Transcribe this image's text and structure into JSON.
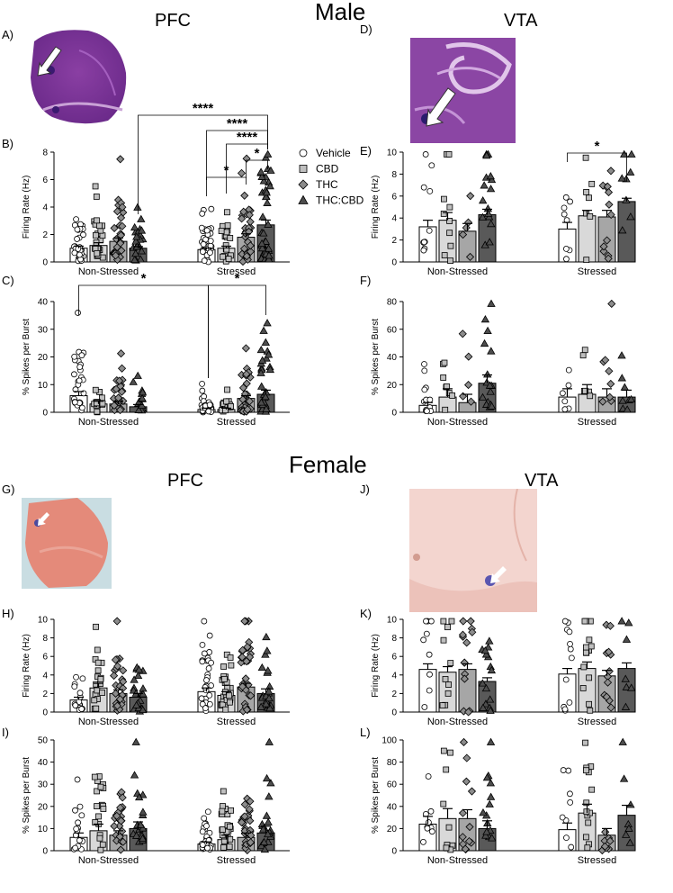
{
  "titles": {
    "male": "Male",
    "female": "Female"
  },
  "regions": {
    "male_pfc": "PFC",
    "male_vta": "VTA",
    "female_pfc": "PFC",
    "female_vta": "VTA"
  },
  "panel_labels": [
    "A)",
    "B)",
    "C)",
    "D)",
    "E)",
    "F)",
    "G)",
    "H)",
    "I)",
    "J)",
    "K)",
    "L)"
  ],
  "legend": {
    "entries": [
      {
        "label": "Vehicle",
        "marker": "circle"
      },
      {
        "label": "CBD",
        "marker": "square"
      },
      {
        "label": "THC",
        "marker": "diamond"
      },
      {
        "label": "THC:CBD",
        "marker": "triangle"
      }
    ]
  },
  "colors": {
    "vehicle": "#ffffff",
    "cbd": "#d9d9d9",
    "thc": "#a6a6a6",
    "thccbd": "#595959",
    "marker_cbd": "#bfbfbf",
    "marker_thc": "#8c8c8c",
    "marker_thccbd": "#4d4d4d"
  },
  "chart_data": [
    {
      "id": "B",
      "type": "bar",
      "ylabel": "Firing Rate (Hz)",
      "ylim": [
        0,
        8
      ],
      "yticks": [
        0,
        2,
        4,
        6,
        8
      ],
      "categories": [
        "Non-Stressed",
        "Stressed"
      ],
      "series": [
        {
          "name": "Vehicle",
          "values": [
            1.0,
            0.9
          ],
          "sem": [
            0.15,
            0.12
          ],
          "n": [
            30,
            30
          ]
        },
        {
          "name": "CBD",
          "values": [
            1.2,
            1.0
          ],
          "sem": [
            0.2,
            0.15
          ],
          "n": [
            22,
            20
          ]
        },
        {
          "name": "THC",
          "values": [
            1.5,
            1.8
          ],
          "sem": [
            0.25,
            0.25
          ],
          "n": [
            30,
            30
          ]
        },
        {
          "name": "THC:CBD",
          "values": [
            1.0,
            2.7
          ],
          "sem": [
            0.12,
            0.35
          ],
          "n": [
            22,
            40
          ]
        }
      ],
      "annotations": [
        "****",
        "****",
        "****",
        "*",
        "*"
      ]
    },
    {
      "id": "C",
      "type": "bar",
      "ylabel": "% Spikes per Burst",
      "ylim": [
        0,
        40
      ],
      "yticks": [
        0,
        10,
        20,
        30,
        40
      ],
      "categories": [
        "Non-Stressed",
        "Stressed"
      ],
      "series": [
        {
          "name": "Vehicle",
          "values": [
            6.0,
            1.0
          ],
          "sem": [
            1.5,
            0.5
          ],
          "n": [
            30,
            30
          ]
        },
        {
          "name": "CBD",
          "values": [
            3.0,
            1.0
          ],
          "sem": [
            1.0,
            0.5
          ],
          "n": [
            15,
            15
          ]
        },
        {
          "name": "THC",
          "values": [
            3.0,
            5.0
          ],
          "sem": [
            1.0,
            1.0
          ],
          "n": [
            25,
            30
          ]
        },
        {
          "name": "THC:CBD",
          "values": [
            2.0,
            6.5
          ],
          "sem": [
            0.8,
            1.5
          ],
          "n": [
            15,
            30
          ]
        }
      ],
      "annotations": [
        "*",
        "*"
      ]
    },
    {
      "id": "E",
      "type": "bar",
      "ylabel": "Firing Rate (Hz)",
      "ylim": [
        0,
        10
      ],
      "yticks": [
        0,
        2,
        4,
        6,
        8,
        10
      ],
      "categories": [
        "Non-Stressed",
        "Stressed"
      ],
      "series": [
        {
          "name": "Vehicle",
          "values": [
            3.2,
            3.0
          ],
          "sem": [
            0.6,
            0.6
          ],
          "n": [
            10,
            8
          ]
        },
        {
          "name": "CBD",
          "values": [
            3.8,
            4.2
          ],
          "sem": [
            0.7,
            0.5
          ],
          "n": [
            10,
            7
          ]
        },
        {
          "name": "THC",
          "values": [
            2.8,
            4.1
          ],
          "sem": [
            0.7,
            0.6
          ],
          "n": [
            5,
            12
          ]
        },
        {
          "name": "THC:CBD",
          "values": [
            4.3,
            5.5
          ],
          "sem": [
            0.5,
            0.3
          ],
          "n": [
            16,
            8
          ]
        }
      ],
      "annotations": [
        "*"
      ]
    },
    {
      "id": "F",
      "type": "bar",
      "ylabel": "% Spikes per Burst",
      "ylim": [
        0,
        80
      ],
      "yticks": [
        0,
        20,
        40,
        60,
        80
      ],
      "categories": [
        "Non-Stressed",
        "Stressed"
      ],
      "series": [
        {
          "name": "Vehicle",
          "values": [
            5,
            11
          ],
          "sem": [
            2,
            6
          ],
          "n": [
            12,
            6
          ]
        },
        {
          "name": "CBD",
          "values": [
            11,
            13
          ],
          "sem": [
            6,
            7
          ],
          "n": [
            8,
            6
          ]
        },
        {
          "name": "THC",
          "values": [
            7,
            11
          ],
          "sem": [
            6,
            6
          ],
          "n": [
            5,
            8
          ]
        },
        {
          "name": "THC:CBD",
          "values": [
            21,
            11
          ],
          "sem": [
            6,
            5
          ],
          "n": [
            16,
            8
          ]
        }
      ],
      "annotations": []
    },
    {
      "id": "H",
      "type": "bar",
      "ylabel": "Firing Rate (Hz)",
      "ylim": [
        0,
        10
      ],
      "yticks": [
        0,
        2,
        4,
        6,
        8,
        10
      ],
      "categories": [
        "Non-Stressed",
        "Stressed"
      ],
      "series": [
        {
          "name": "Vehicle",
          "values": [
            1.3,
            2.2
          ],
          "sem": [
            0.3,
            0.4
          ],
          "n": [
            15,
            28
          ]
        },
        {
          "name": "CBD",
          "values": [
            2.6,
            1.8
          ],
          "sem": [
            0.5,
            0.4
          ],
          "n": [
            18,
            30
          ]
        },
        {
          "name": "THC",
          "values": [
            2.0,
            2.7
          ],
          "sem": [
            0.4,
            0.4
          ],
          "n": [
            25,
            30
          ]
        },
        {
          "name": "THC:CBD",
          "values": [
            1.6,
            2.0
          ],
          "sem": [
            0.4,
            0.5
          ],
          "n": [
            20,
            20
          ]
        }
      ],
      "annotations": []
    },
    {
      "id": "I",
      "type": "bar",
      "ylabel": "% Spikes per Burst",
      "ylim": [
        0,
        50
      ],
      "yticks": [
        0,
        10,
        20,
        30,
        40,
        50
      ],
      "categories": [
        "Non-Stressed",
        "Stressed"
      ],
      "series": [
        {
          "name": "Vehicle",
          "values": [
            6,
            3
          ],
          "sem": [
            2,
            1
          ],
          "n": [
            15,
            28
          ]
        },
        {
          "name": "CBD",
          "values": [
            9,
            5
          ],
          "sem": [
            3,
            2
          ],
          "n": [
            18,
            30
          ]
        },
        {
          "name": "THC",
          "values": [
            7,
            6
          ],
          "sem": [
            2,
            2
          ],
          "n": [
            25,
            30
          ]
        },
        {
          "name": "THC:CBD",
          "values": [
            10,
            8
          ],
          "sem": [
            3,
            3
          ],
          "n": [
            20,
            20
          ]
        }
      ],
      "annotations": []
    },
    {
      "id": "K",
      "type": "bar",
      "ylabel": "Firing Rate (Hz)",
      "ylim": [
        0,
        10
      ],
      "yticks": [
        0,
        2,
        4,
        6,
        8,
        10
      ],
      "categories": [
        "Non-Stressed",
        "Stressed"
      ],
      "series": [
        {
          "name": "Vehicle",
          "values": [
            4.6,
            4.1
          ],
          "sem": [
            0.6,
            0.6
          ],
          "n": [
            9,
            12
          ]
        },
        {
          "name": "CBD",
          "values": [
            4.3,
            4.7
          ],
          "sem": [
            0.6,
            0.7
          ],
          "n": [
            10,
            14
          ]
        },
        {
          "name": "THC",
          "values": [
            4.6,
            3.9
          ],
          "sem": [
            0.6,
            0.6
          ],
          "n": [
            14,
            12
          ]
        },
        {
          "name": "THC:CBD",
          "values": [
            3.3,
            4.7
          ],
          "sem": [
            0.4,
            0.6
          ],
          "n": [
            15,
            7
          ]
        }
      ],
      "annotations": []
    },
    {
      "id": "L",
      "type": "bar",
      "ylabel": "% Spikes per Burst",
      "ylim": [
        0,
        100
      ],
      "yticks": [
        0,
        20,
        40,
        60,
        80,
        100
      ],
      "categories": [
        "Non-Stressed",
        "Stressed"
      ],
      "series": [
        {
          "name": "Vehicle",
          "values": [
            24,
            19
          ],
          "sem": [
            7,
            6
          ],
          "n": [
            9,
            8
          ]
        },
        {
          "name": "CBD",
          "values": [
            29,
            34
          ],
          "sem": [
            9,
            8
          ],
          "n": [
            10,
            14
          ]
        },
        {
          "name": "THC",
          "values": [
            29,
            14
          ],
          "sem": [
            8,
            6
          ],
          "n": [
            12,
            8
          ]
        },
        {
          "name": "THC:CBD",
          "values": [
            20,
            32
          ],
          "sem": [
            7,
            9
          ],
          "n": [
            14,
            7
          ]
        }
      ],
      "annotations": []
    }
  ]
}
